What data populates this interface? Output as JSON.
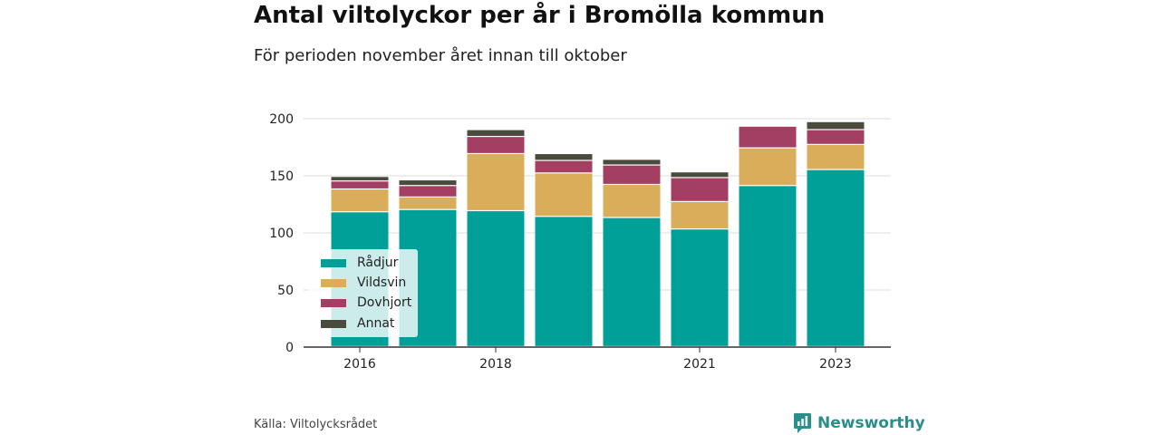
{
  "title": "Antal viltolyckor per år i Bromölla kommun",
  "subtitle": "För perioden november året innan till oktober",
  "source": "Källa: Viltolycksrådet",
  "brand": "Newsworthy",
  "colors": {
    "radjur": "#00a099",
    "vildsvin": "#d9ad5a",
    "dovhjort": "#a43f64",
    "annat": "#4b4b3d",
    "grid": "#dddddd",
    "axis": "#333333",
    "brand": "#2a8f8c"
  },
  "chart_data": {
    "type": "bar",
    "stacked": true,
    "categories": [
      "2016",
      "2017",
      "2018",
      "2019",
      "2020",
      "2021",
      "2022",
      "2023"
    ],
    "x_tick_labels": [
      "2016",
      "",
      "2018",
      "",
      "",
      "2021",
      "",
      "2023"
    ],
    "y_ticks": [
      0,
      50,
      100,
      150,
      200
    ],
    "ylim": [
      0,
      200
    ],
    "grid": true,
    "legend_position": "bottom-left",
    "series": [
      {
        "name": "Rådjur",
        "color": "#00a099",
        "values": [
          118,
          120,
          119,
          114,
          113,
          103,
          141,
          155
        ]
      },
      {
        "name": "Vildsvin",
        "color": "#d9ad5a",
        "values": [
          20,
          11,
          50,
          38,
          29,
          24,
          33,
          22
        ]
      },
      {
        "name": "Dovhjort",
        "color": "#a43f64",
        "values": [
          7,
          10,
          15,
          11,
          17,
          21,
          19,
          13
        ]
      },
      {
        "name": "Annat",
        "color": "#4b4b3d",
        "values": [
          4,
          5,
          6,
          6,
          5,
          5,
          0,
          7
        ]
      }
    ]
  }
}
